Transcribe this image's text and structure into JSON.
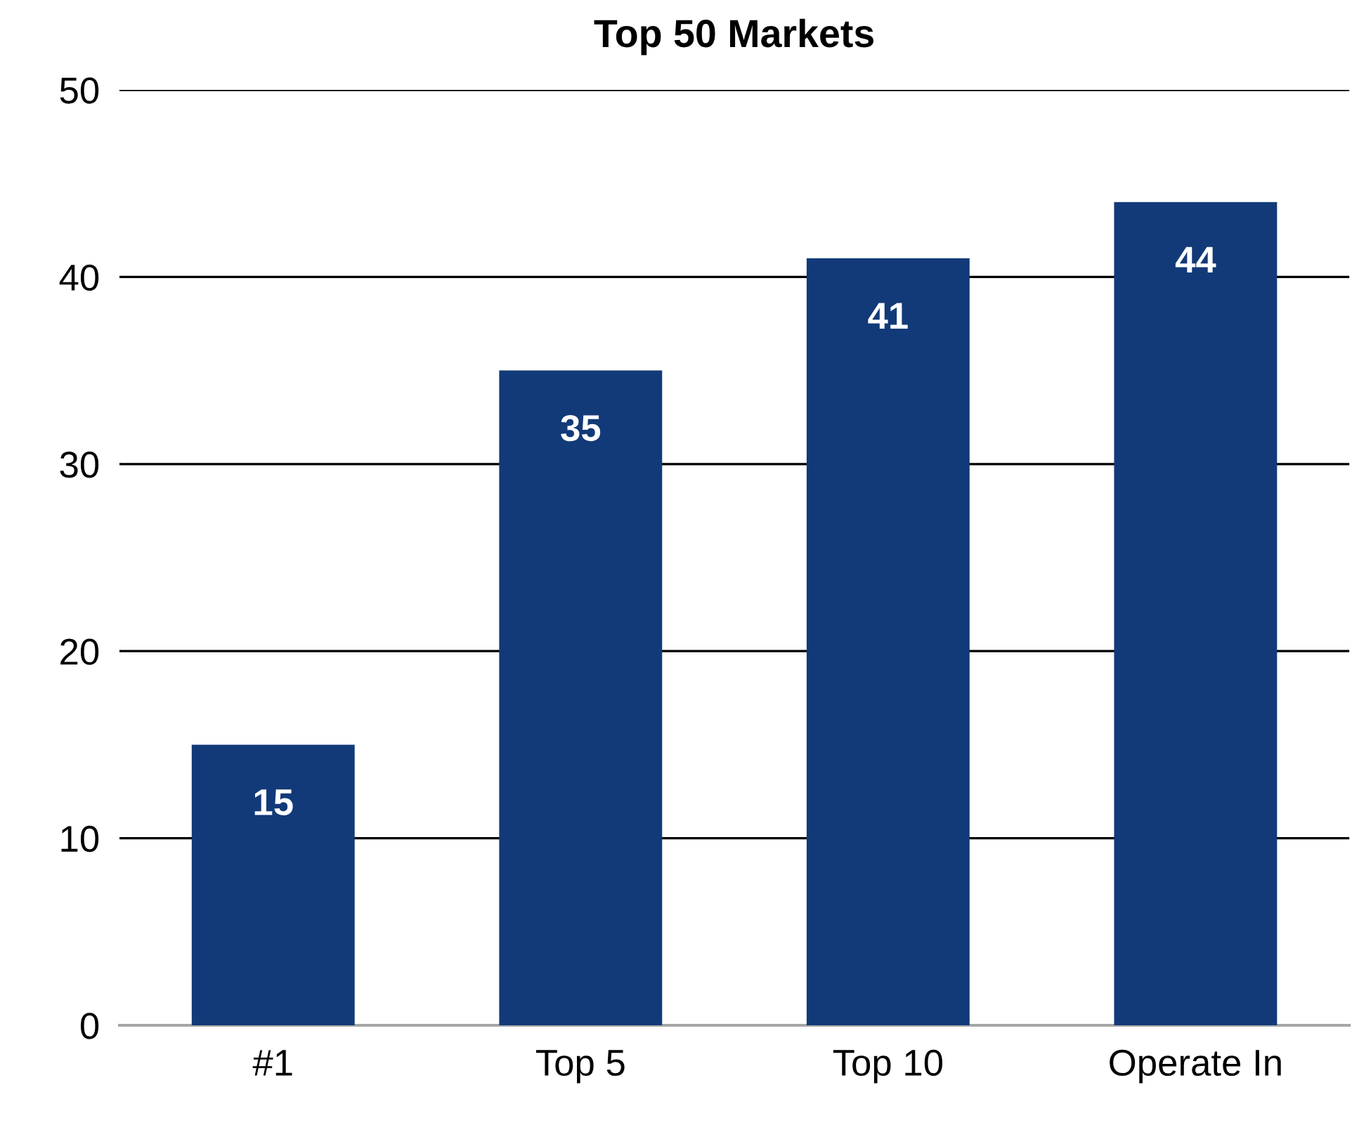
{
  "chart_data": {
    "type": "bar",
    "title": "Top 50 Markets",
    "categories": [
      "#1",
      "Top 5",
      "Top 10",
      "Operate In"
    ],
    "values": [
      15,
      35,
      41,
      44
    ],
    "color": "#123a78",
    "ylim": [
      0,
      50
    ],
    "yticks": [
      0,
      10,
      20,
      30,
      40,
      50
    ],
    "grid": "y",
    "data_labels": true
  }
}
